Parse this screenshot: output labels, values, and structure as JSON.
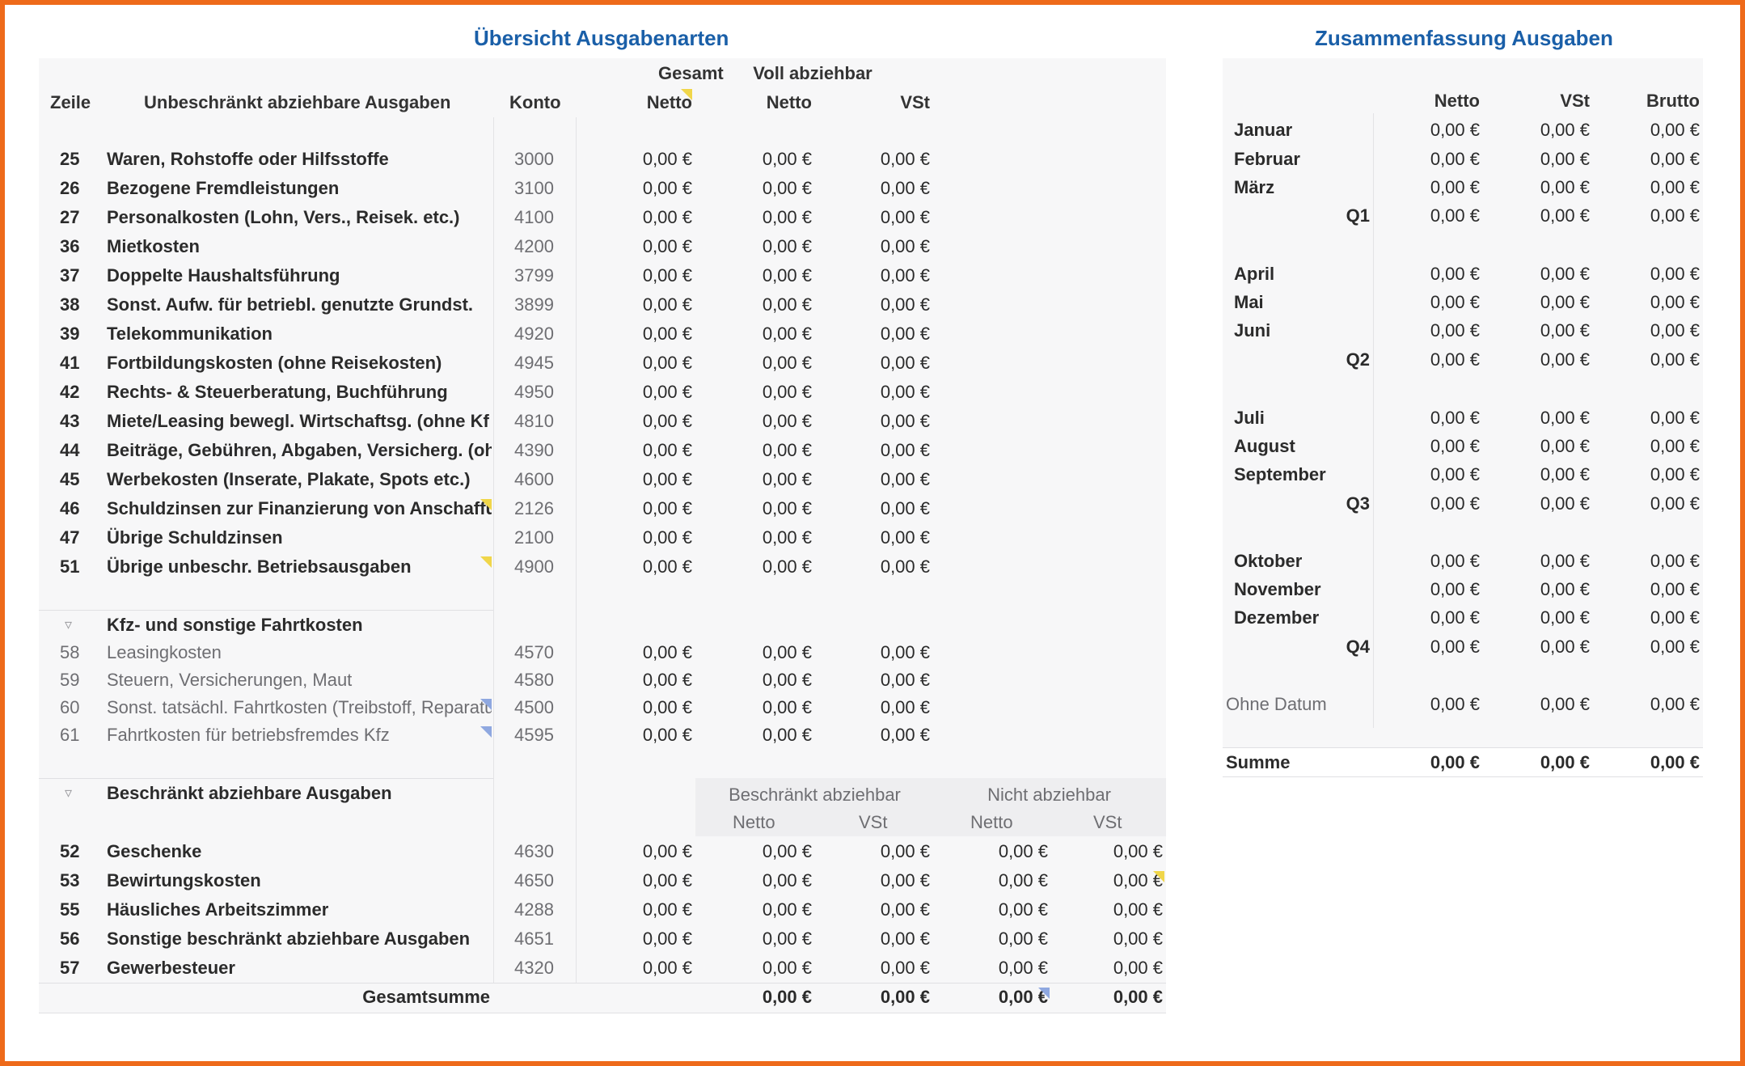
{
  "left": {
    "title": "Übersicht Ausgabenarten",
    "headers": {
      "zeile": "Zeile",
      "description": "Unbeschränkt abziehbare Ausgaben",
      "konto": "Konto",
      "gesamt": "Gesamt",
      "gesamt_netto": "Netto",
      "voll": "Voll abziehbar",
      "voll_netto": "Netto",
      "voll_vst": "VSt"
    },
    "rows_main": [
      {
        "zeile": "25",
        "desc": "Waren, Rohstoffe oder Hilfsstoffe",
        "konto": "3000",
        "g": "0,00 €",
        "n": "0,00 €",
        "v": "0,00 €"
      },
      {
        "zeile": "26",
        "desc": "Bezogene Fremdleistungen",
        "konto": "3100",
        "g": "0,00 €",
        "n": "0,00 €",
        "v": "0,00 €"
      },
      {
        "zeile": "27",
        "desc": "Personalkosten (Lohn, Vers., Reisek. etc.)",
        "konto": "4100",
        "g": "0,00 €",
        "n": "0,00 €",
        "v": "0,00 €"
      },
      {
        "zeile": "36",
        "desc": "Mietkosten",
        "konto": "4200",
        "g": "0,00 €",
        "n": "0,00 €",
        "v": "0,00 €"
      },
      {
        "zeile": "37",
        "desc": "Doppelte Haushaltsführung",
        "konto": "3799",
        "g": "0,00 €",
        "n": "0,00 €",
        "v": "0,00 €"
      },
      {
        "zeile": "38",
        "desc": "Sonst. Aufw. für betriebl. genutzte Grundst.",
        "konto": "3899",
        "g": "0,00 €",
        "n": "0,00 €",
        "v": "0,00 €"
      },
      {
        "zeile": "39",
        "desc": "Telekommunikation",
        "konto": "4920",
        "g": "0,00 €",
        "n": "0,00 €",
        "v": "0,00 €"
      },
      {
        "zeile": "41",
        "desc": "Fortbildungskosten (ohne Reisekosten)",
        "konto": "4945",
        "g": "0,00 €",
        "n": "0,00 €",
        "v": "0,00 €"
      },
      {
        "zeile": "42",
        "desc": "Rechts- & Steuerberatung, Buchführung",
        "konto": "4950",
        "g": "0,00 €",
        "n": "0,00 €",
        "v": "0,00 €"
      },
      {
        "zeile": "43",
        "desc": "Miete/Leasing bewegl. Wirtschaftsg. (ohne Kf",
        "konto": "4810",
        "g": "0,00 €",
        "n": "0,00 €",
        "v": "0,00 €"
      },
      {
        "zeile": "44",
        "desc": "Beiträge, Gebühren, Abgaben, Versicherg. (oh",
        "konto": "4390",
        "g": "0,00 €",
        "n": "0,00 €",
        "v": "0,00 €"
      },
      {
        "zeile": "45",
        "desc": "Werbekosten (Inserate, Plakate, Spots etc.)",
        "konto": "4600",
        "g": "0,00 €",
        "n": "0,00 €",
        "v": "0,00 €"
      },
      {
        "zeile": "46",
        "desc": "Schuldzinsen zur Finanzierung von Anschaffu",
        "konto": "2126",
        "g": "0,00 €",
        "n": "0,00 €",
        "v": "0,00 €"
      },
      {
        "zeile": "47",
        "desc": "Übrige Schuldzinsen",
        "konto": "2100",
        "g": "0,00 €",
        "n": "0,00 €",
        "v": "0,00 €"
      },
      {
        "zeile": "51",
        "desc": "Übrige unbeschr. Betriebsausgaben",
        "konto": "4900",
        "g": "0,00 €",
        "n": "0,00 €",
        "v": "0,00 €"
      }
    ],
    "kfz": {
      "title": "Kfz- und sonstige Fahrtkosten",
      "rows": [
        {
          "zeile": "58",
          "desc": "Leasingkosten",
          "konto": "4570",
          "g": "0,00 €",
          "n": "0,00 €",
          "v": "0,00 €"
        },
        {
          "zeile": "59",
          "desc": "Steuern, Versicherungen, Maut",
          "konto": "4580",
          "g": "0,00 €",
          "n": "0,00 €",
          "v": "0,00 €"
        },
        {
          "zeile": "60",
          "desc": "Sonst. tatsächl. Fahrtkosten (Treibstoff, Reparatu",
          "konto": "4500",
          "g": "0,00 €",
          "n": "0,00 €",
          "v": "0,00 €"
        },
        {
          "zeile": "61",
          "desc": "Fahrtkosten für betriebsfremdes Kfz",
          "konto": "4595",
          "g": "0,00 €",
          "n": "0,00 €",
          "v": "0,00 €"
        }
      ]
    },
    "beschr": {
      "title": "Beschränkt abziehbare Ausgaben",
      "h_beschr": "Beschränkt abziehbar",
      "h_nicht": "Nicht abziehbar",
      "h_netto1": "Netto",
      "h_vst1": "VSt",
      "h_netto2": "Netto",
      "h_vst2": "VSt",
      "rows": [
        {
          "zeile": "52",
          "desc": "Geschenke",
          "konto": "4630",
          "g": "0,00 €",
          "bn": "0,00 €",
          "bv": "0,00 €",
          "nn": "0,00 €",
          "nv": "0,00 €"
        },
        {
          "zeile": "53",
          "desc": "Bewirtungskosten",
          "konto": "4650",
          "g": "0,00 €",
          "bn": "0,00 €",
          "bv": "0,00 €",
          "nn": "0,00 €",
          "nv": "0,00 €"
        },
        {
          "zeile": "55",
          "desc": "Häusliches Arbeitszimmer",
          "konto": "4288",
          "g": "0,00 €",
          "bn": "0,00 €",
          "bv": "0,00 €",
          "nn": "0,00 €",
          "nv": "0,00 €"
        },
        {
          "zeile": "56",
          "desc": "Sonstige beschränkt abziehbare Ausgaben",
          "konto": "4651",
          "g": "0,00 €",
          "bn": "0,00 €",
          "bv": "0,00 €",
          "nn": "0,00 €",
          "nv": "0,00 €"
        },
        {
          "zeile": "57",
          "desc": "Gewerbesteuer",
          "konto": "4320",
          "g": "0,00 €",
          "bn": "0,00 €",
          "bv": "0,00 €",
          "nn": "0,00 €",
          "nv": "0,00 €"
        }
      ]
    },
    "total": {
      "label": "Gesamtsumme",
      "a": "0,00 €",
      "b": "0,00 €",
      "c": "0,00 €",
      "d": "0,00 €"
    }
  },
  "right": {
    "title": "Zusammenfassung Ausgaben",
    "headers": {
      "netto": "Netto",
      "vst": "VSt",
      "brutto": "Brutto"
    },
    "rows": [
      {
        "label": "Januar",
        "type": "month",
        "netto": "0,00 €",
        "vst": "0,00 €",
        "brutto": "0,00 €"
      },
      {
        "label": "Februar",
        "type": "month",
        "netto": "0,00 €",
        "vst": "0,00 €",
        "brutto": "0,00 €"
      },
      {
        "label": "März",
        "type": "month",
        "netto": "0,00 €",
        "vst": "0,00 €",
        "brutto": "0,00 €"
      },
      {
        "label": "Q1",
        "type": "quarter",
        "netto": "0,00 €",
        "vst": "0,00 €",
        "brutto": "0,00 €"
      },
      {
        "label": "April",
        "type": "month",
        "netto": "0,00 €",
        "vst": "0,00 €",
        "brutto": "0,00 €"
      },
      {
        "label": "Mai",
        "type": "month",
        "netto": "0,00 €",
        "vst": "0,00 €",
        "brutto": "0,00 €"
      },
      {
        "label": "Juni",
        "type": "month",
        "netto": "0,00 €",
        "vst": "0,00 €",
        "brutto": "0,00 €"
      },
      {
        "label": "Q2",
        "type": "quarter",
        "netto": "0,00 €",
        "vst": "0,00 €",
        "brutto": "0,00 €"
      },
      {
        "label": "Juli",
        "type": "month",
        "netto": "0,00 €",
        "vst": "0,00 €",
        "brutto": "0,00 €"
      },
      {
        "label": "August",
        "type": "month",
        "netto": "0,00 €",
        "vst": "0,00 €",
        "brutto": "0,00 €"
      },
      {
        "label": "September",
        "type": "month",
        "netto": "0,00 €",
        "vst": "0,00 €",
        "brutto": "0,00 €"
      },
      {
        "label": "Q3",
        "type": "quarter",
        "netto": "0,00 €",
        "vst": "0,00 €",
        "brutto": "0,00 €"
      },
      {
        "label": "Oktober",
        "type": "month",
        "netto": "0,00 €",
        "vst": "0,00 €",
        "brutto": "0,00 €"
      },
      {
        "label": "November",
        "type": "month",
        "netto": "0,00 €",
        "vst": "0,00 €",
        "brutto": "0,00 €"
      },
      {
        "label": "Dezember",
        "type": "month",
        "netto": "0,00 €",
        "vst": "0,00 €",
        "brutto": "0,00 €"
      },
      {
        "label": "Q4",
        "type": "quarter",
        "netto": "0,00 €",
        "vst": "0,00 €",
        "brutto": "0,00 €"
      },
      {
        "label": "Ohne Datum",
        "type": "other",
        "netto": "0,00 €",
        "vst": "0,00 €",
        "brutto": "0,00 €"
      }
    ],
    "sum": {
      "label": "Summe",
      "netto": "0,00 €",
      "vst": "0,00 €",
      "brutto": "0,00 €"
    }
  }
}
